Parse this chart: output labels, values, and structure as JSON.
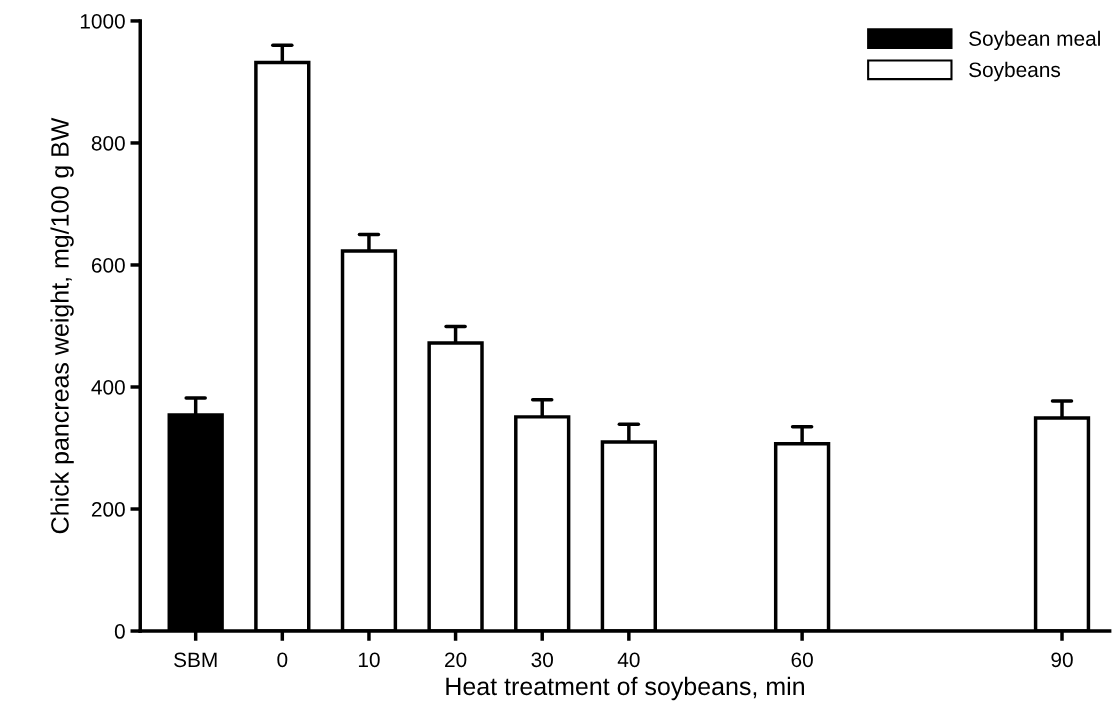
{
  "chart_data": {
    "type": "bar",
    "xlabel": "Heat treatment of soybeans, min",
    "ylabel": "Chick pancreas weight, mg/100 g BW",
    "categories": [
      "SBM",
      "0",
      "10",
      "20",
      "30",
      "40",
      null,
      "60",
      null,
      null,
      "90"
    ],
    "series": [
      {
        "name": "Soybean meal",
        "color": "#000000",
        "values": [
          354,
          null,
          null,
          null,
          null,
          null,
          null,
          null,
          null,
          null,
          null
        ],
        "errors": [
          [
            354,
            382
          ],
          null,
          null,
          null,
          null,
          null,
          null,
          null,
          null,
          null,
          null
        ]
      },
      {
        "name": "Soybeans",
        "color": "#ffffff",
        "values": [
          null,
          932,
          623,
          472,
          351,
          310,
          null,
          307,
          null,
          null,
          349
        ],
        "errors": [
          null,
          [
            932,
            960
          ],
          [
            623,
            650
          ],
          [
            472,
            499
          ],
          [
            351,
            379
          ],
          [
            310,
            339
          ],
          null,
          [
            307,
            335
          ],
          null,
          null,
          [
            349,
            377
          ]
        ]
      }
    ],
    "ylim": [
      0,
      1000
    ],
    "yticks": [
      0,
      200,
      400,
      600,
      800,
      1000
    ],
    "grid": false,
    "legend": "top right"
  }
}
